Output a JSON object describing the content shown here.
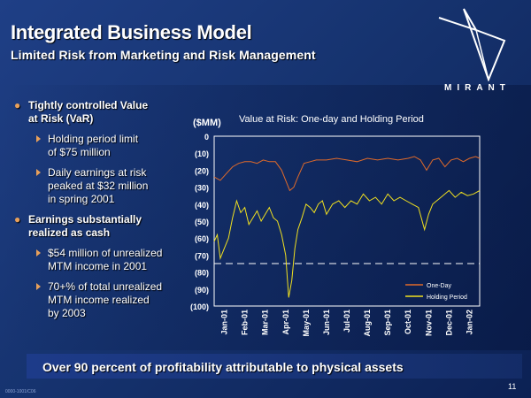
{
  "slide": {
    "title": "Integrated Business Model",
    "subtitle": "Limited Risk from Marketing and Risk Management",
    "logo_text": "MIRANT",
    "footer": "Over 90 percent of profitability attributable to physical assets",
    "page_number": "11",
    "doc_code": "0000-1001/C06"
  },
  "bullets": [
    {
      "text_lines": [
        "Tightly controlled Value",
        "at Risk (VaR)"
      ],
      "sub": [
        {
          "lines": [
            "Holding period limit",
            "of $75 million"
          ]
        },
        {
          "lines": [
            "Daily earnings at risk",
            "peaked at $32 million",
            "in spring 2001"
          ]
        }
      ]
    },
    {
      "text_lines": [
        "Earnings substantially",
        "realized as cash"
      ],
      "sub": [
        {
          "lines": [
            "$54 million of unrealized",
            "MTM income in 2001"
          ]
        },
        {
          "lines": [
            "70+% of total unrealized",
            "MTM  income realized",
            "by 2003"
          ]
        }
      ]
    }
  ],
  "colors": {
    "accent": "#e8a05a",
    "one_day": "#e06a2a",
    "holding_period": "#f0e020",
    "limit_line": "#ffffff"
  },
  "chart_data": {
    "type": "line",
    "title": "Value at Risk: One-day and Holding Period",
    "ylabel": "($MM)",
    "ylim": [
      -100,
      0
    ],
    "yticks": [
      0,
      -10,
      -20,
      -30,
      -40,
      -50,
      -60,
      -70,
      -80,
      -90,
      -100
    ],
    "ytick_labels": [
      "0",
      "(10)",
      "(20)",
      "(30)",
      "(40)",
      "(50)",
      "(60)",
      "(70)",
      "(80)",
      "(90)",
      "(100)"
    ],
    "x_labels": [
      "Jan-01",
      "Feb-01",
      "Mar-01",
      "Apr-01",
      "May-01",
      "Jun-01",
      "Jul-01",
      "Aug-01",
      "Sep-01",
      "Oct-01",
      "Nov-01",
      "Dec-01",
      "Jan-02"
    ],
    "x_range": [
      0,
      13
    ],
    "legend": "bottom-right",
    "limit": -75,
    "series": [
      {
        "name": "One-Day",
        "x": [
          0,
          0.3,
          0.6,
          0.9,
          1.2,
          1.5,
          1.8,
          2.1,
          2.4,
          2.7,
          3.0,
          3.3,
          3.5,
          3.7,
          3.9,
          4.1,
          4.4,
          4.7,
          5.0,
          5.5,
          6.0,
          6.5,
          7.0,
          7.5,
          8.0,
          8.5,
          9.0,
          9.5,
          9.8,
          10.1,
          10.4,
          10.7,
          11.0,
          11.3,
          11.6,
          11.9,
          12.2,
          12.5,
          12.8,
          13.0
        ],
        "values": [
          -24,
          -26,
          -22,
          -18,
          -16,
          -15,
          -15,
          -16,
          -14,
          -15,
          -15,
          -20,
          -26,
          -32,
          -30,
          -24,
          -16,
          -15,
          -14,
          -14,
          -13,
          -14,
          -15,
          -13,
          -14,
          -13,
          -14,
          -13,
          -12,
          -14,
          -20,
          -14,
          -13,
          -18,
          -14,
          -13,
          -15,
          -13,
          -12,
          -13
        ]
      },
      {
        "name": "Holding Period",
        "x": [
          0,
          0.15,
          0.3,
          0.5,
          0.7,
          0.9,
          1.1,
          1.3,
          1.5,
          1.7,
          1.9,
          2.1,
          2.3,
          2.5,
          2.7,
          2.9,
          3.1,
          3.3,
          3.5,
          3.65,
          3.8,
          3.95,
          4.1,
          4.3,
          4.5,
          4.7,
          4.9,
          5.1,
          5.3,
          5.5,
          5.8,
          6.1,
          6.4,
          6.7,
          7.0,
          7.3,
          7.6,
          7.9,
          8.2,
          8.5,
          8.8,
          9.1,
          9.4,
          9.7,
          10.0,
          10.3,
          10.5,
          10.7,
          10.9,
          11.1,
          11.3,
          11.5,
          11.8,
          12.1,
          12.4,
          12.7,
          13.0
        ],
        "values": [
          -62,
          -58,
          -72,
          -66,
          -60,
          -48,
          -38,
          -45,
          -42,
          -52,
          -48,
          -44,
          -50,
          -46,
          -42,
          -48,
          -50,
          -58,
          -70,
          -95,
          -85,
          -66,
          -55,
          -48,
          -40,
          -42,
          -45,
          -40,
          -38,
          -46,
          -40,
          -38,
          -42,
          -38,
          -40,
          -34,
          -38,
          -36,
          -40,
          -34,
          -38,
          -36,
          -38,
          -40,
          -42,
          -55,
          -46,
          -40,
          -38,
          -36,
          -34,
          -32,
          -36,
          -33,
          -35,
          -34,
          -32
        ]
      }
    ]
  }
}
